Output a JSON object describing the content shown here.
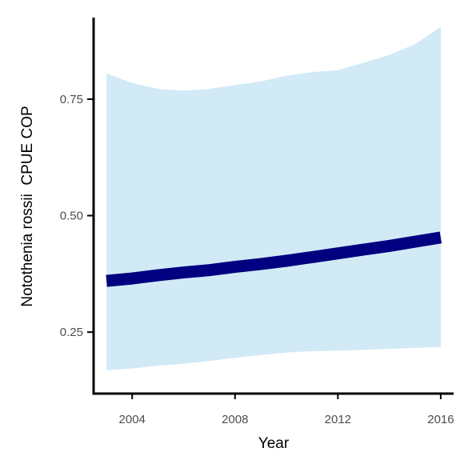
{
  "chart_data": {
    "type": "line",
    "title": "",
    "xlabel": "Year",
    "ylabel": "Notothenia rossii  CPUE COP",
    "xlim": [
      2002.5,
      2016.5
    ],
    "ylim": [
      0.118,
      0.925
    ],
    "x_ticks": [
      2004,
      2008,
      2012,
      2016
    ],
    "x_tick_labels": [
      "2004",
      "2008",
      "2012",
      "2016"
    ],
    "y_ticks": [
      0.25,
      0.5,
      0.75
    ],
    "y_tick_labels": [
      "0.25",
      "0.50",
      "0.75"
    ],
    "grid": false,
    "legend": "none",
    "series": [
      {
        "x": [
          2003,
          2004,
          2005,
          2006,
          2007,
          2008,
          2009,
          2010,
          2011,
          2012,
          2013,
          2014,
          2015,
          2016
        ],
        "values": [
          0.36,
          0.365,
          0.372,
          0.378,
          0.383,
          0.39,
          0.396,
          0.403,
          0.411,
          0.419,
          0.427,
          0.435,
          0.444,
          0.453
        ],
        "lower": [
          0.168,
          0.172,
          0.178,
          0.182,
          0.188,
          0.195,
          0.201,
          0.206,
          0.209,
          0.21,
          0.212,
          0.214,
          0.216,
          0.218
        ],
        "upper": [
          0.805,
          0.785,
          0.772,
          0.768,
          0.772,
          0.78,
          0.788,
          0.8,
          0.808,
          0.812,
          0.828,
          0.845,
          0.868,
          0.905
        ],
        "color": "#000080",
        "band_color": "#d1eaf6"
      }
    ]
  }
}
